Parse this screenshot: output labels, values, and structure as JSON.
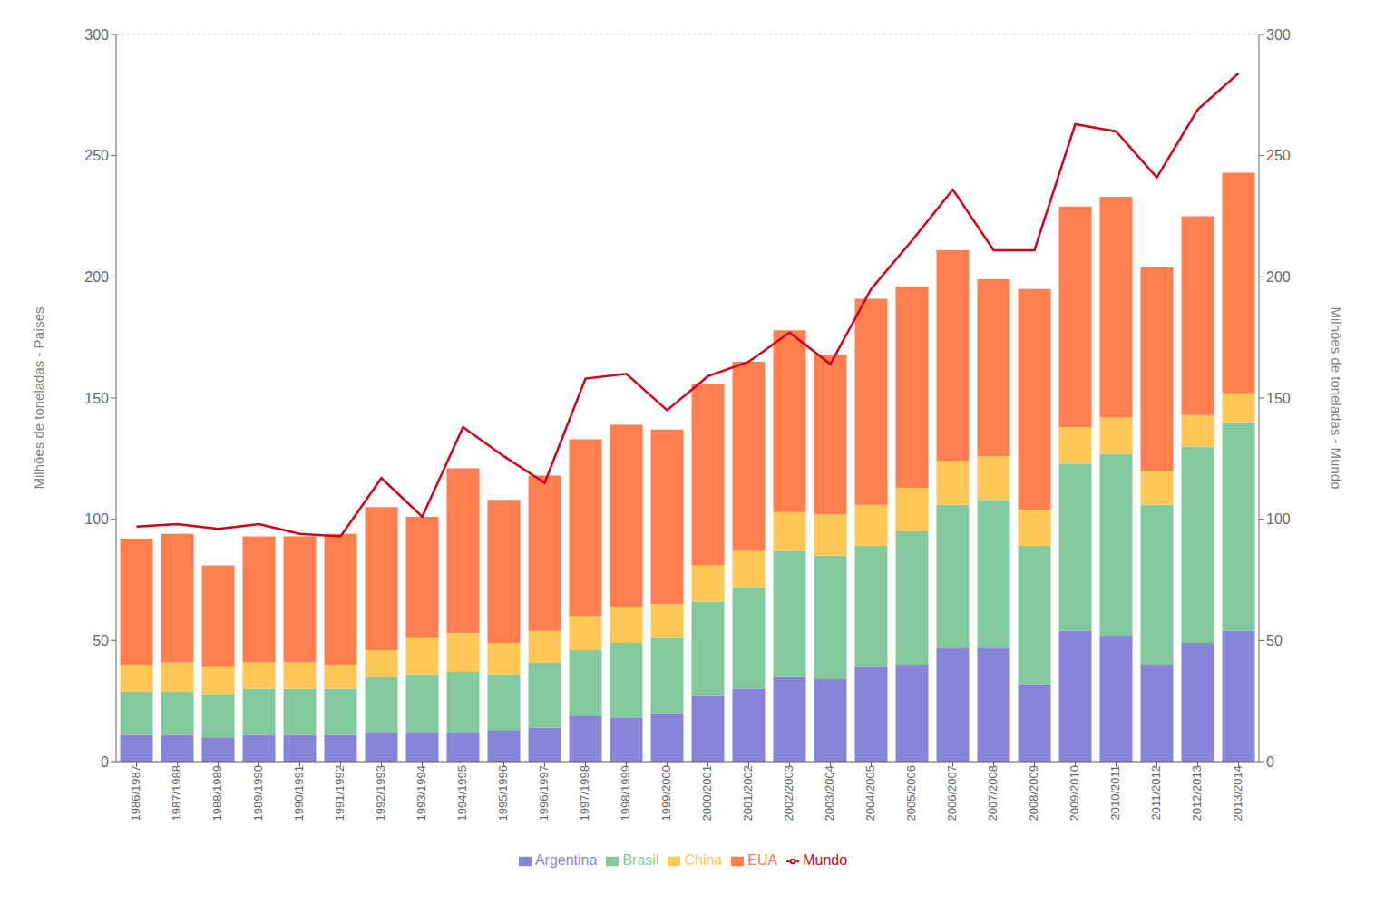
{
  "chart_data": {
    "type": "bar",
    "stacked": true,
    "grid": true,
    "legend": "bottom",
    "ylabel": "Milhões de toneladas - Países",
    "y2label": "Milhões de toneladas - Mundo",
    "categories": [
      "1986/1987",
      "1987/1988",
      "1988/1989",
      "1989/1990",
      "1990/1991",
      "1991/1992",
      "1992/1993",
      "1993/1994",
      "1994/1995",
      "1995/1996",
      "1996/1997",
      "1997/1998",
      "1998/1999",
      "1999/2000",
      "2000/2001",
      "2001/2002",
      "2002/2003",
      "2003/2004",
      "2004/2005",
      "2005/2006",
      "2006/2007",
      "2007/2008",
      "2008/2009",
      "2009/2010",
      "2010/2011",
      "2011/2012",
      "2012/2013",
      "2013/2014"
    ],
    "ylim": [
      0,
      300
    ],
    "yticks": [
      0,
      50,
      100,
      150,
      200,
      250,
      300
    ],
    "y2lim": [
      0,
      300
    ],
    "y2ticks": [
      0,
      50,
      100,
      150,
      200,
      250,
      300
    ],
    "series": [
      {
        "name": "Argentina",
        "type": "bar",
        "values": [
          11,
          11,
          10,
          11,
          11,
          11,
          12,
          12,
          12,
          13,
          14,
          19,
          18,
          20,
          27,
          30,
          35,
          34,
          39,
          40,
          47,
          47,
          32,
          54,
          52,
          40,
          49,
          54
        ]
      },
      {
        "name": "Brasil",
        "type": "bar",
        "values": [
          18,
          18,
          18,
          19,
          19,
          19,
          23,
          24,
          25,
          23,
          27,
          27,
          31,
          31,
          39,
          42,
          52,
          51,
          50,
          55,
          59,
          61,
          57,
          69,
          75,
          66,
          81,
          86
        ]
      },
      {
        "name": "China",
        "type": "bar",
        "values": [
          11,
          12,
          11,
          11,
          11,
          10,
          11,
          15,
          16,
          13,
          13,
          14,
          15,
          14,
          15,
          15,
          16,
          17,
          17,
          18,
          18,
          18,
          15,
          15,
          15,
          14,
          13,
          12
        ]
      },
      {
        "name": "EUA",
        "type": "bar",
        "values": [
          52,
          53,
          42,
          52,
          52,
          54,
          59,
          50,
          68,
          59,
          64,
          73,
          75,
          72,
          75,
          78,
          75,
          66,
          85,
          83,
          87,
          73,
          91,
          91,
          91,
          84,
          82,
          91
        ]
      },
      {
        "name": "Mundo",
        "type": "line",
        "axis": "y2",
        "values": [
          97,
          98,
          96,
          98,
          94,
          93,
          117,
          101,
          138,
          126,
          115,
          158,
          160,
          145,
          159,
          165,
          177,
          164,
          195,
          215,
          236,
          211,
          211,
          263,
          260,
          241,
          269,
          284
        ]
      }
    ]
  }
}
